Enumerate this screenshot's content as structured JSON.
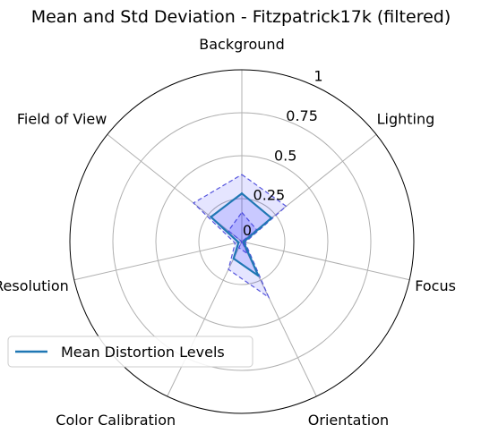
{
  "chart_data": {
    "type": "radar",
    "title": "Mean and Std Deviation - Fitzpatrick17k (filtered)",
    "categories": [
      "Background",
      "Lighting",
      "Focus",
      "Orientation",
      "Color Calibration",
      "Resolution",
      "Field of View"
    ],
    "radial_ticks": [
      {
        "value": 0,
        "label": "0"
      },
      {
        "value": 0.25,
        "label": "0.25"
      },
      {
        "value": 0.5,
        "label": "0.5"
      },
      {
        "value": 0.75,
        "label": "0.75"
      },
      {
        "value": 1,
        "label": "1"
      }
    ],
    "rlim": [
      0,
      1
    ],
    "grid": true,
    "series": [
      {
        "name": "Mean Distortion Levels",
        "values": [
          0.28,
          0.22,
          0.01,
          0.22,
          0.11,
          0.02,
          0.23
        ]
      }
    ],
    "std_band": {
      "upper": [
        0.39,
        0.33,
        0.02,
        0.36,
        0.18,
        0.04,
        0.36
      ],
      "lower": [
        0.17,
        0.11,
        0.0,
        0.08,
        0.04,
        0.0,
        0.1
      ]
    },
    "legend": {
      "position": "lower-left"
    },
    "colors": {
      "mean_line": "#1f77b4",
      "band_fill": "#0000ff",
      "band_edge": "#5555dd",
      "grid": "#b0b0b0",
      "frame": "#000000"
    }
  }
}
